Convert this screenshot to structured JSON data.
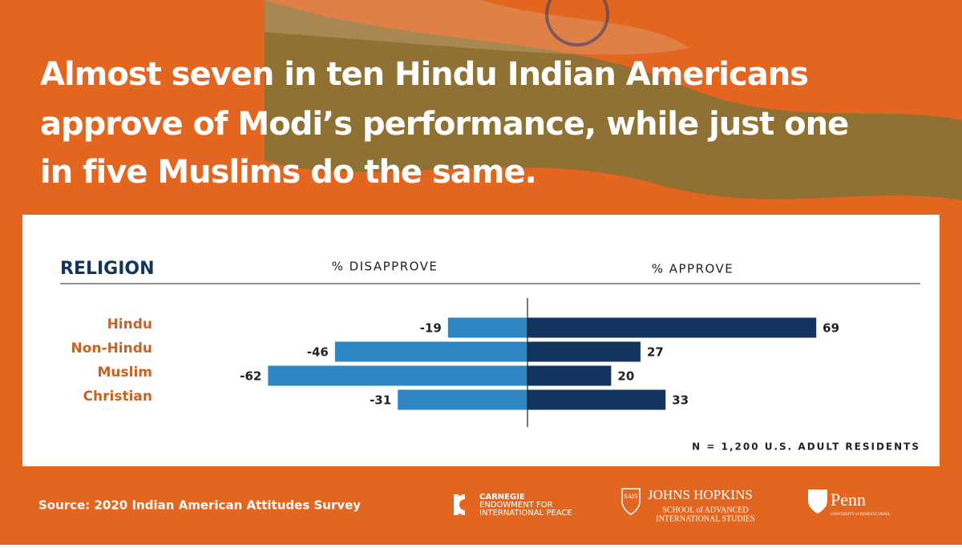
{
  "title_lines": [
    "Almost seven in ten Hindu Indian Americans",
    "approve of Modi’s performance, while just one",
    "in five Muslims do the same."
  ],
  "chart_data": {
    "type": "bar",
    "orientation": "horizontal-diverging",
    "category_header": "RELIGION",
    "categories": [
      "Hindu",
      "Non-Hindu",
      "Muslim",
      "Christian"
    ],
    "series": [
      {
        "name": "% DISAPPROVE",
        "color": "#2e86c4",
        "values": [
          -19,
          -46,
          -62,
          -31
        ]
      },
      {
        "name": "% APPROVE",
        "color": "#13345f",
        "values": [
          69,
          27,
          20,
          33
        ]
      }
    ],
    "note": "N = 1,200 U.S. ADULT RESIDENTS"
  },
  "footer": {
    "source": "Source: 2020 Indian American Attitudes Survey",
    "logos": {
      "carnegie": [
        "CARNEGIE",
        "ENDOWMENT FOR",
        "INTERNATIONAL PEACE"
      ],
      "sais": "SAIS",
      "jhu": [
        "JOHNS HOPKINS",
        "SCHOOL of ADVANCED",
        "INTERNATIONAL STUDIES"
      ],
      "penn": [
        "Penn",
        "UNIVERSITY of PENNSYLVANIA"
      ]
    }
  }
}
